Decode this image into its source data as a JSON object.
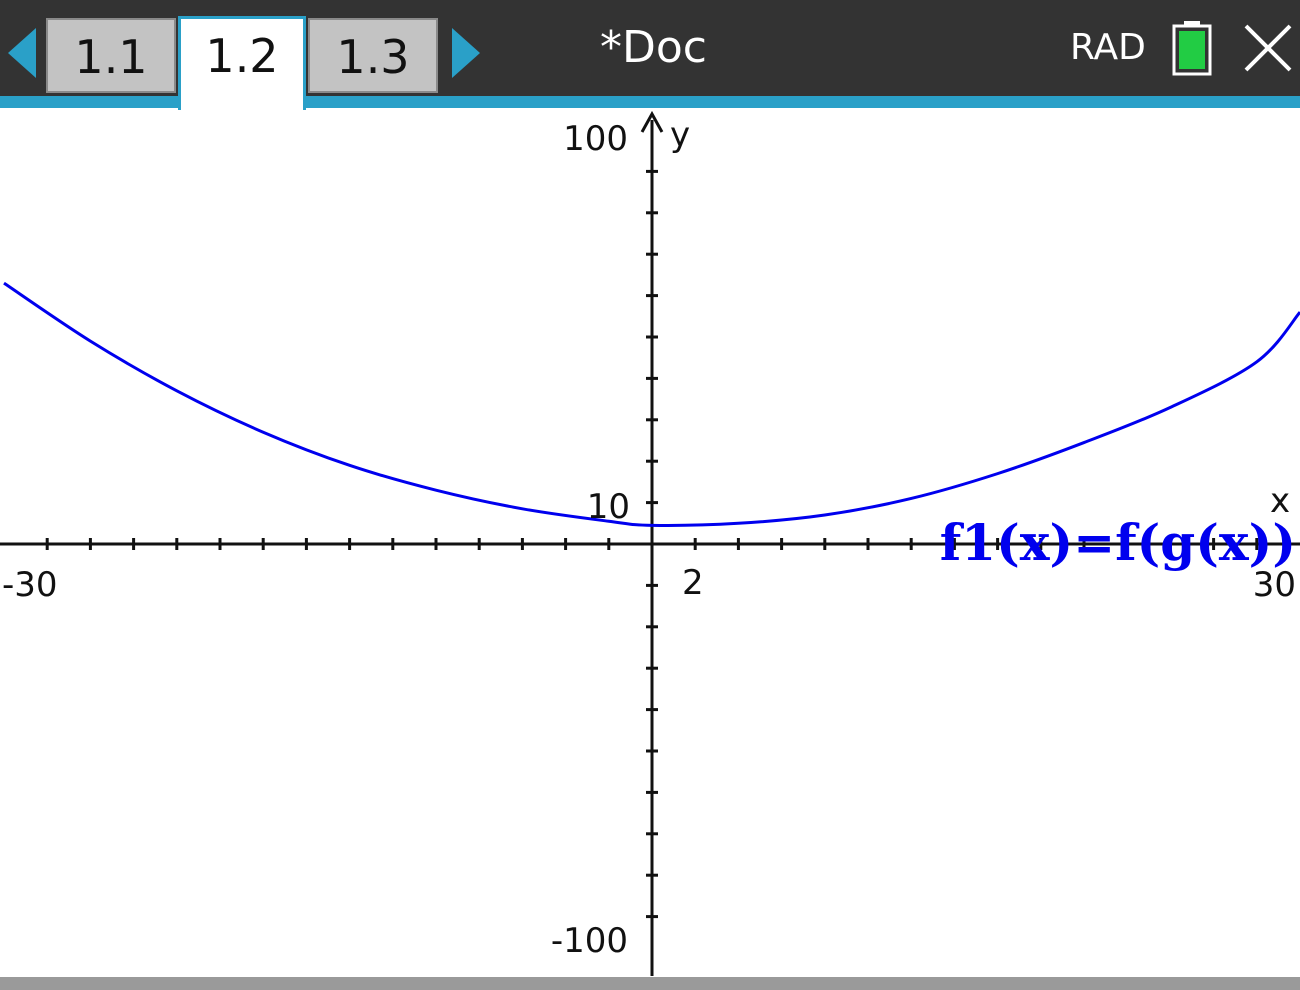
{
  "toolbar": {
    "tabs": [
      {
        "label": "1.1",
        "active": false
      },
      {
        "label": "1.2",
        "active": true
      },
      {
        "label": "1.3",
        "active": false
      }
    ],
    "doc_title": "*Doc",
    "angle_mode": "RAD",
    "battery_color": "#22cc44",
    "accent_color": "#2aa0c8",
    "icons": {
      "prev": "left-arrow-icon",
      "next": "right-arrow-icon",
      "battery": "battery-icon",
      "close": "close-icon"
    }
  },
  "graph": {
    "x_min_label": "-30",
    "x_max_label": "30",
    "x_scale_label": "2",
    "y_max_label": "100",
    "y_min_label": "-100",
    "y_scale_label": "10",
    "y_axis_name": "y",
    "x_axis_name": "x",
    "function_label": "f1(x)=f(g(x))",
    "curve_color": "#0000ee"
  },
  "chart_data": {
    "type": "line",
    "title": "",
    "xlabel": "x",
    "ylabel": "y",
    "xlim": [
      -30,
      30
    ],
    "ylim": [
      -100,
      100
    ],
    "x_tick_step": 2,
    "y_tick_step": 10,
    "grid": false,
    "series": [
      {
        "name": "f1(x)=f(g(x))",
        "x": [
          -30,
          -26,
          -22,
          -18,
          -14,
          -10,
          -6,
          -2,
          0,
          4,
          8,
          12,
          16,
          20,
          24,
          28,
          30
        ],
        "y": [
          63,
          49,
          37,
          27,
          19,
          13,
          8.5,
          5.5,
          4.5,
          5,
          7,
          11,
          17,
          24.5,
          33,
          44,
          56
        ]
      }
    ]
  }
}
